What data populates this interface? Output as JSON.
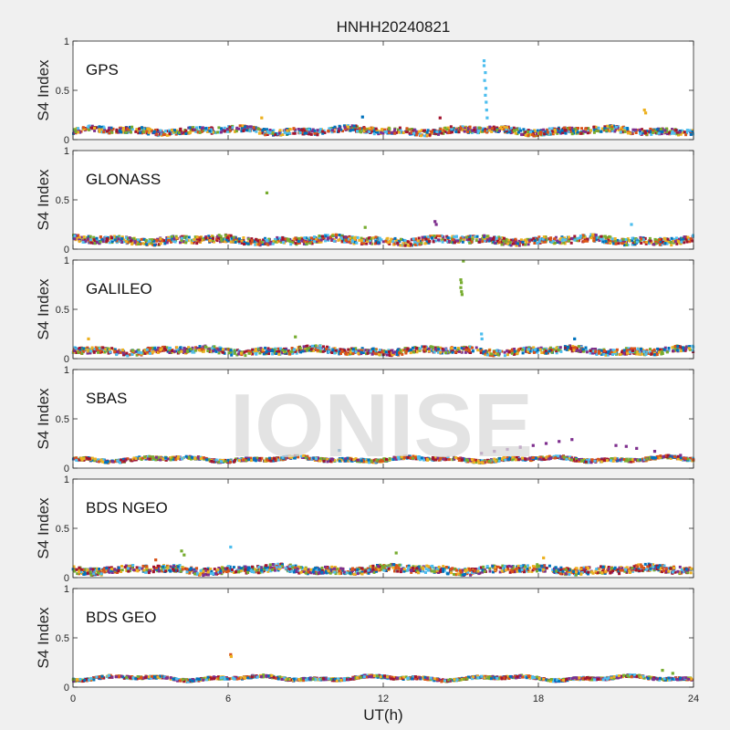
{
  "figure": {
    "title": "HNHH20240821",
    "xlabel": "UT(h)",
    "watermark": "IONISE",
    "background": "#f0f0f0",
    "axes_background": "#ffffff"
  },
  "chart_data": {
    "type": "scatter",
    "title": "HNHH20240821",
    "xlabel": "UT(h)",
    "xlim": [
      0,
      24
    ],
    "xticks": [
      0,
      6,
      12,
      18,
      24
    ],
    "ylim": [
      0,
      1
    ],
    "yticks": [
      0,
      0.5,
      1
    ],
    "grid": false,
    "legend": "none",
    "series_colors": [
      "#0072BD",
      "#D95319",
      "#EDB120",
      "#7E2F8E",
      "#77AC30",
      "#4DBEEE",
      "#A2142F"
    ],
    "panels": [
      {
        "name": "GPS",
        "ylabel": "S4 Index",
        "baseline": 0.09,
        "noise": 0.03,
        "points": [
          {
            "x": 15.9,
            "y": 0.8,
            "c": 5
          },
          {
            "x": 15.9,
            "y": 0.75,
            "c": 5
          },
          {
            "x": 15.95,
            "y": 0.68,
            "c": 5
          },
          {
            "x": 15.92,
            "y": 0.6,
            "c": 5
          },
          {
            "x": 15.97,
            "y": 0.52,
            "c": 5
          },
          {
            "x": 15.95,
            "y": 0.45,
            "c": 5
          },
          {
            "x": 15.98,
            "y": 0.38,
            "c": 5
          },
          {
            "x": 16.0,
            "y": 0.3,
            "c": 5
          },
          {
            "x": 16.02,
            "y": 0.22,
            "c": 5
          },
          {
            "x": 22.1,
            "y": 0.3,
            "c": 2
          },
          {
            "x": 22.15,
            "y": 0.27,
            "c": 2
          },
          {
            "x": 7.3,
            "y": 0.22,
            "c": 2
          },
          {
            "x": 11.2,
            "y": 0.23,
            "c": 0
          },
          {
            "x": 14.2,
            "y": 0.22,
            "c": 6
          }
        ]
      },
      {
        "name": "GLONASS",
        "ylabel": "S4 Index",
        "baseline": 0.09,
        "noise": 0.035,
        "points": [
          {
            "x": 7.5,
            "y": 0.57,
            "c": 4
          },
          {
            "x": 14.0,
            "y": 0.28,
            "c": 3
          },
          {
            "x": 14.05,
            "y": 0.25,
            "c": 3
          },
          {
            "x": 21.6,
            "y": 0.25,
            "c": 5
          },
          {
            "x": 11.3,
            "y": 0.22,
            "c": 4
          }
        ]
      },
      {
        "name": "GALILEO",
        "ylabel": "S4 Index",
        "baseline": 0.08,
        "noise": 0.03,
        "points": [
          {
            "x": 15.1,
            "y": 0.99,
            "c": 4
          },
          {
            "x": 15.0,
            "y": 0.8,
            "c": 4
          },
          {
            "x": 15.02,
            "y": 0.77,
            "c": 4
          },
          {
            "x": 15.0,
            "y": 0.72,
            "c": 4
          },
          {
            "x": 15.03,
            "y": 0.68,
            "c": 4
          },
          {
            "x": 15.05,
            "y": 0.65,
            "c": 4
          },
          {
            "x": 15.8,
            "y": 0.25,
            "c": 5
          },
          {
            "x": 15.82,
            "y": 0.2,
            "c": 5
          },
          {
            "x": 8.6,
            "y": 0.22,
            "c": 4
          },
          {
            "x": 19.4,
            "y": 0.2,
            "c": 0
          },
          {
            "x": 0.6,
            "y": 0.2,
            "c": 2
          }
        ]
      },
      {
        "name": "SBAS",
        "ylabel": "S4 Index",
        "baseline": 0.09,
        "noise": 0.015,
        "points": [
          {
            "x": 15.8,
            "y": 0.15,
            "c": 3
          },
          {
            "x": 16.3,
            "y": 0.17,
            "c": 3
          },
          {
            "x": 16.8,
            "y": 0.19,
            "c": 3
          },
          {
            "x": 17.3,
            "y": 0.21,
            "c": 3
          },
          {
            "x": 17.8,
            "y": 0.23,
            "c": 3
          },
          {
            "x": 18.3,
            "y": 0.25,
            "c": 3
          },
          {
            "x": 18.8,
            "y": 0.27,
            "c": 3
          },
          {
            "x": 19.3,
            "y": 0.29,
            "c": 3
          },
          {
            "x": 21.0,
            "y": 0.23,
            "c": 3
          },
          {
            "x": 21.4,
            "y": 0.22,
            "c": 3
          },
          {
            "x": 21.8,
            "y": 0.2,
            "c": 3
          },
          {
            "x": 22.5,
            "y": 0.17,
            "c": 3
          },
          {
            "x": 23.5,
            "y": 0.13,
            "c": 3
          },
          {
            "x": 10.3,
            "y": 0.18,
            "c": 0
          }
        ]
      },
      {
        "name": "BDS NGEO",
        "ylabel": "S4 Index",
        "baseline": 0.08,
        "noise": 0.035,
        "points": [
          {
            "x": 6.1,
            "y": 0.31,
            "c": 5
          },
          {
            "x": 4.2,
            "y": 0.27,
            "c": 4
          },
          {
            "x": 4.3,
            "y": 0.23,
            "c": 4
          },
          {
            "x": 12.5,
            "y": 0.25,
            "c": 4
          },
          {
            "x": 3.2,
            "y": 0.18,
            "c": 1
          },
          {
            "x": 18.2,
            "y": 0.2,
            "c": 2
          }
        ]
      },
      {
        "name": "BDS GEO",
        "ylabel": "S4 Index",
        "baseline": 0.09,
        "noise": 0.012,
        "points": [
          {
            "x": 6.1,
            "y": 0.33,
            "c": 1
          },
          {
            "x": 6.12,
            "y": 0.31,
            "c": 2
          },
          {
            "x": 22.8,
            "y": 0.17,
            "c": 4
          },
          {
            "x": 23.2,
            "y": 0.14,
            "c": 4
          }
        ]
      }
    ]
  }
}
